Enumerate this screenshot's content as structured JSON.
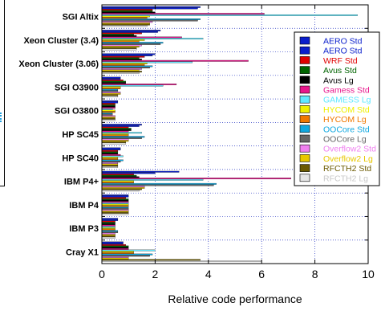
{
  "chart_data": {
    "type": "bar",
    "orientation": "horizontal",
    "xlabel": "Relative code performance",
    "xlim": [
      0,
      10
    ],
    "xticks": [
      0,
      2,
      4,
      6,
      8,
      10
    ],
    "grid": "dotted, x and y",
    "legend_placement": "top-right",
    "categories": [
      "SGI Altix",
      "Xeon Cluster (3.4)",
      "Xeon Cluster (3.06)",
      "SGI O3900",
      "SGI O3800",
      "HP SC45",
      "HP SC40",
      "IBM P4+",
      "IBM P4",
      "IBM P3",
      "Cray X1"
    ],
    "series": [
      {
        "name": "AERO Std",
        "color": "#0a1ecc",
        "values": [
          3.7,
          2.2,
          2.0,
          0.7,
          0.6,
          1.5,
          0.7,
          2.9,
          1.0,
          0.6,
          0.8
        ]
      },
      {
        "name": "AERO Std",
        "color": "#0a1ecc",
        "values": [
          3.6,
          2.1,
          1.9,
          0.7,
          0.6,
          1.4,
          0.7,
          2.0,
          1.0,
          0.6,
          0.8
        ]
      },
      {
        "name": "WRF Std",
        "color": "#e00000",
        "values": [
          1.9,
          1.5,
          1.6,
          0.8,
          0.5,
          1.0,
          0.6,
          1.2,
          0.9,
          0.5,
          0.9
        ]
      },
      {
        "name": "Avus Std",
        "color": "#006400",
        "values": [
          1.9,
          1.2,
          1.4,
          0.9,
          0.5,
          1.1,
          0.6,
          1.3,
          1.0,
          0.5,
          1.0
        ]
      },
      {
        "name": "Avus Lg",
        "color": "#000000",
        "values": [
          2.0,
          1.3,
          1.5,
          0.9,
          0.5,
          1.1,
          0.6,
          1.4,
          1.0,
          0.5,
          1.0
        ]
      },
      {
        "name": "Gamess Std",
        "color": "#e8168c",
        "values": [
          6.1,
          3.0,
          5.5,
          2.8,
          0.5,
          1.0,
          0.7,
          7.1,
          1.0,
          0.5,
          1.0
        ]
      },
      {
        "name": "GAMESS Lg",
        "color": "#60e8ff",
        "values": [
          9.6,
          3.8,
          3.4,
          2.3,
          0.4,
          1.5,
          0.8,
          3.8,
          1.0,
          0.5,
          2.0
        ]
      },
      {
        "name": "HYCOM Std",
        "color": "#f0f000",
        "values": [
          1.8,
          1.6,
          1.7,
          0.7,
          0.5,
          1.0,
          0.6,
          1.2,
          1.0,
          0.5,
          1.2
        ]
      },
      {
        "name": "HYCOM Lg",
        "color": "#f07800",
        "values": [
          1.7,
          1.4,
          1.6,
          0.7,
          0.5,
          1.0,
          0.6,
          1.2,
          1.0,
          0.5,
          1.2
        ]
      },
      {
        "name": "OOCore Std",
        "color": "#10a8e0",
        "values": [
          3.7,
          2.3,
          1.9,
          0.6,
          0.4,
          1.6,
          0.8,
          4.3,
          1.0,
          0.6,
          1.9
        ]
      },
      {
        "name": "OOCore Lg",
        "color": "#666666",
        "values": [
          3.6,
          2.2,
          1.8,
          0.6,
          0.4,
          1.5,
          0.7,
          4.2,
          1.0,
          0.6,
          1.8
        ]
      },
      {
        "name": "Overflow2 Std",
        "color": "#f080f0",
        "values": [
          1.9,
          1.5,
          1.5,
          0.7,
          0.5,
          1.0,
          0.6,
          1.6,
          1.0,
          0.5,
          1.0
        ]
      },
      {
        "name": "Overflow2 Lg",
        "color": "#e8c800",
        "values": [
          1.8,
          1.4,
          1.4,
          0.7,
          0.5,
          1.0,
          0.6,
          1.6,
          1.0,
          0.5,
          1.0
        ]
      },
      {
        "name": "RFCTH2 Std",
        "color": "#6b5a00",
        "values": [
          1.8,
          1.3,
          1.5,
          0.6,
          0.5,
          0.9,
          0.6,
          1.5,
          1.0,
          0.5,
          3.7
        ]
      },
      {
        "name": "RFCTH2 Lg",
        "color": "#e6e6e6",
        "values": [
          1.7,
          1.3,
          1.4,
          0.6,
          0.5,
          0.9,
          0.6,
          1.4,
          1.0,
          0.5,
          6.0
        ]
      }
    ]
  }
}
